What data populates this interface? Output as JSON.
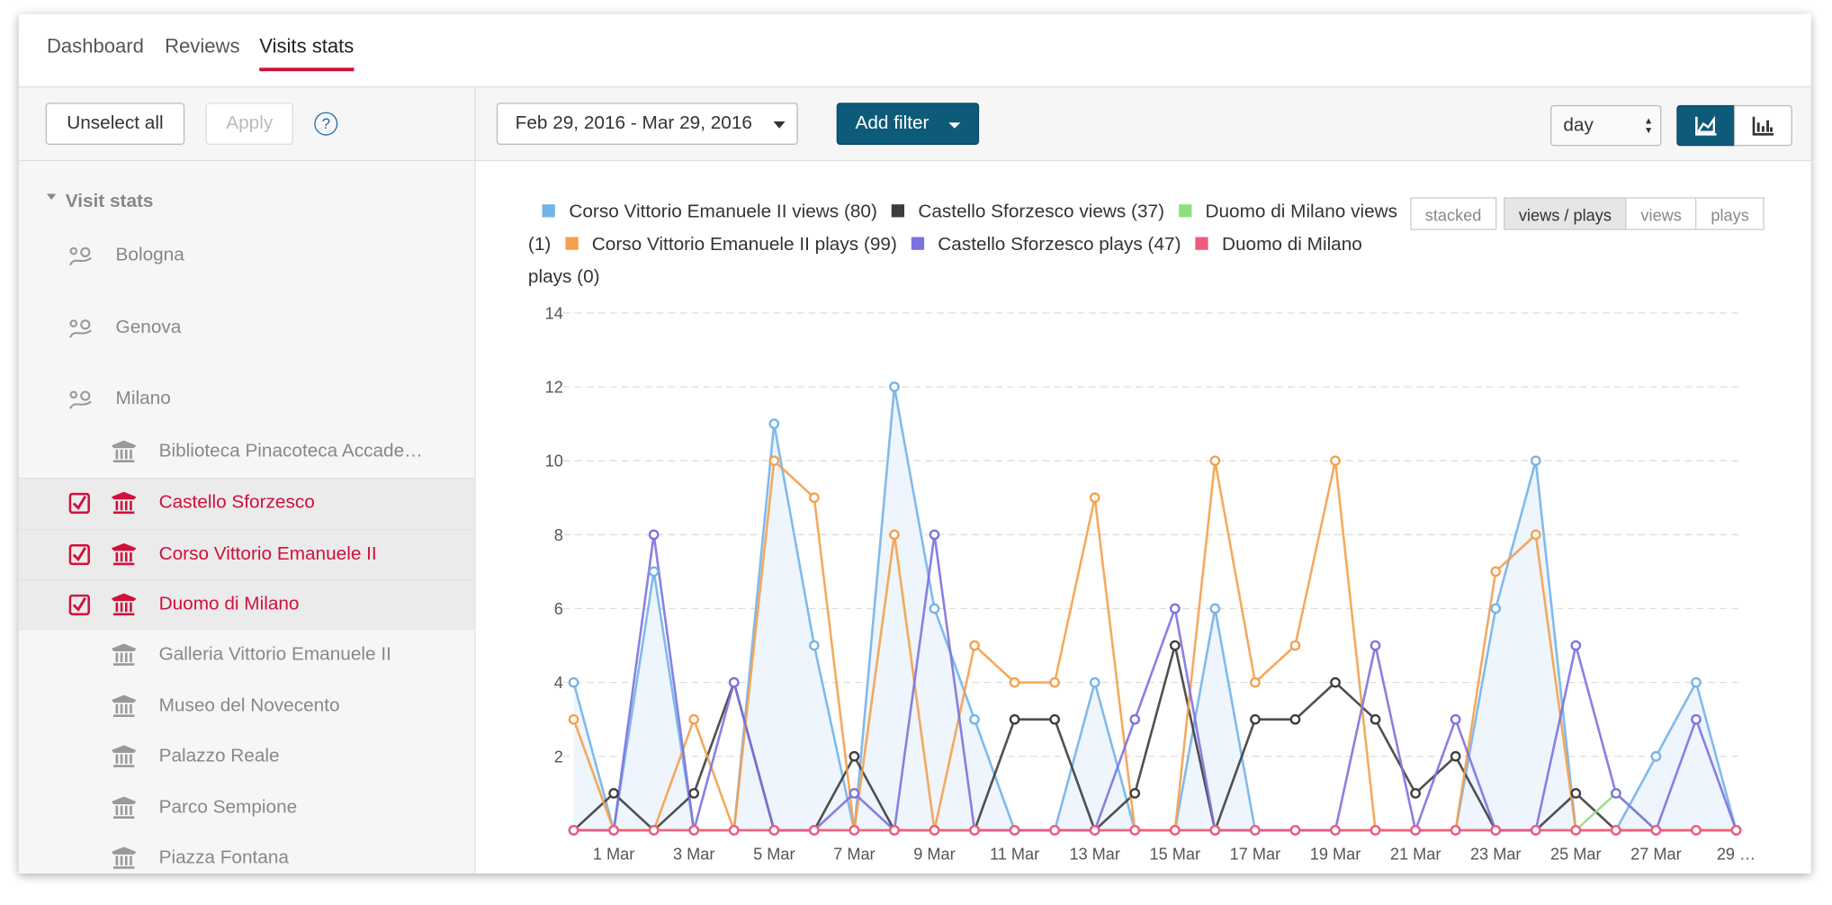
{
  "nav": {
    "tabs": [
      "Dashboard",
      "Reviews",
      "Visits stats"
    ]
  },
  "sidebar": {
    "buttons": [
      "Unselect all",
      "Apply"
    ],
    "help": "?",
    "section": "Visit stats",
    "cities": [
      "Bologna",
      "Genova",
      "Milano"
    ],
    "places": [
      {
        "name": "Biblioteca Pinacoteca Accade…",
        "selected": false
      },
      {
        "name": "Castello Sforzesco",
        "selected": true
      },
      {
        "name": "Corso Vittorio Emanuele II",
        "selected": true
      },
      {
        "name": "Duomo di Milano",
        "selected": true
      },
      {
        "name": "Galleria Vittorio Emanuele II",
        "selected": false
      },
      {
        "name": "Museo del Novecento",
        "selected": false
      },
      {
        "name": "Palazzo Reale",
        "selected": false
      },
      {
        "name": "Parco Sempione",
        "selected": false
      },
      {
        "name": "Piazza Fontana",
        "selected": false
      }
    ]
  },
  "toolbar": {
    "date_range": "Feb 29, 2016 - Mar 29, 2016",
    "add_filter": "Add filter",
    "interval": "day"
  },
  "view_toggles": [
    "stacked",
    "views / plays",
    "views",
    "plays"
  ],
  "chart_data": {
    "type": "line",
    "categories": [
      null,
      "1 Mar",
      null,
      "3 Mar",
      null,
      "5 Mar",
      null,
      "7 Mar",
      null,
      "9 Mar",
      null,
      "11 Mar",
      null,
      "13 Mar",
      null,
      "15 Mar",
      null,
      "17 Mar",
      null,
      "19 Mar",
      null,
      "21 Mar",
      null,
      "23 Mar",
      null,
      "25 Mar",
      null,
      "27 Mar",
      null,
      "29 …"
    ],
    "ylim": [
      0,
      14
    ],
    "yticks": [
      2,
      4,
      6,
      8,
      10,
      12,
      14
    ],
    "grid": true,
    "series": [
      {
        "name": "Corso Vittorio Emanuele II views (80)",
        "color": "#74b3e8",
        "area_color": "#eef5fc",
        "values": [
          4,
          0,
          7,
          0,
          0,
          11,
          5,
          0,
          12,
          6,
          3,
          0,
          0,
          4,
          0,
          0,
          6,
          0,
          0,
          0,
          0,
          0,
          0,
          6,
          10,
          0,
          0,
          2,
          4,
          0
        ]
      },
      {
        "name": "Castello Sforzesco views (37)",
        "color": "#3d3d3d",
        "values": [
          0,
          1,
          0,
          1,
          4,
          0,
          0,
          2,
          0,
          0,
          0,
          3,
          3,
          0,
          1,
          5,
          0,
          3,
          3,
          4,
          3,
          1,
          2,
          0,
          0,
          1,
          0,
          0,
          0,
          0
        ]
      },
      {
        "name": "Duomo di Milano views (1)",
        "color": "#8fe07c",
        "values": [
          0,
          0,
          0,
          0,
          0,
          0,
          0,
          0,
          0,
          0,
          0,
          0,
          0,
          0,
          0,
          0,
          0,
          0,
          0,
          0,
          0,
          0,
          0,
          0,
          0,
          0,
          1,
          0,
          0,
          0
        ]
      },
      {
        "name": "Corso Vittorio Emanuele II plays (99)",
        "color": "#f4a04c",
        "values": [
          3,
          0,
          0,
          3,
          0,
          10,
          9,
          0,
          8,
          0,
          5,
          4,
          4,
          9,
          0,
          0,
          10,
          4,
          5,
          10,
          0,
          0,
          0,
          7,
          8,
          0,
          0,
          0,
          0,
          0
        ]
      },
      {
        "name": "Castello Sforzesco plays (47)",
        "color": "#7b72e0",
        "values": [
          0,
          0,
          8,
          0,
          4,
          0,
          0,
          1,
          0,
          8,
          0,
          0,
          0,
          0,
          3,
          6,
          0,
          0,
          0,
          0,
          5,
          0,
          3,
          0,
          0,
          5,
          1,
          0,
          3,
          0
        ]
      },
      {
        "name": "Duomo di Milano plays (0)",
        "color": "#f05a7e",
        "values": [
          0,
          0,
          0,
          0,
          0,
          0,
          0,
          0,
          0,
          0,
          0,
          0,
          0,
          0,
          0,
          0,
          0,
          0,
          0,
          0,
          0,
          0,
          0,
          0,
          0,
          0,
          0,
          0,
          0,
          0
        ]
      }
    ]
  }
}
